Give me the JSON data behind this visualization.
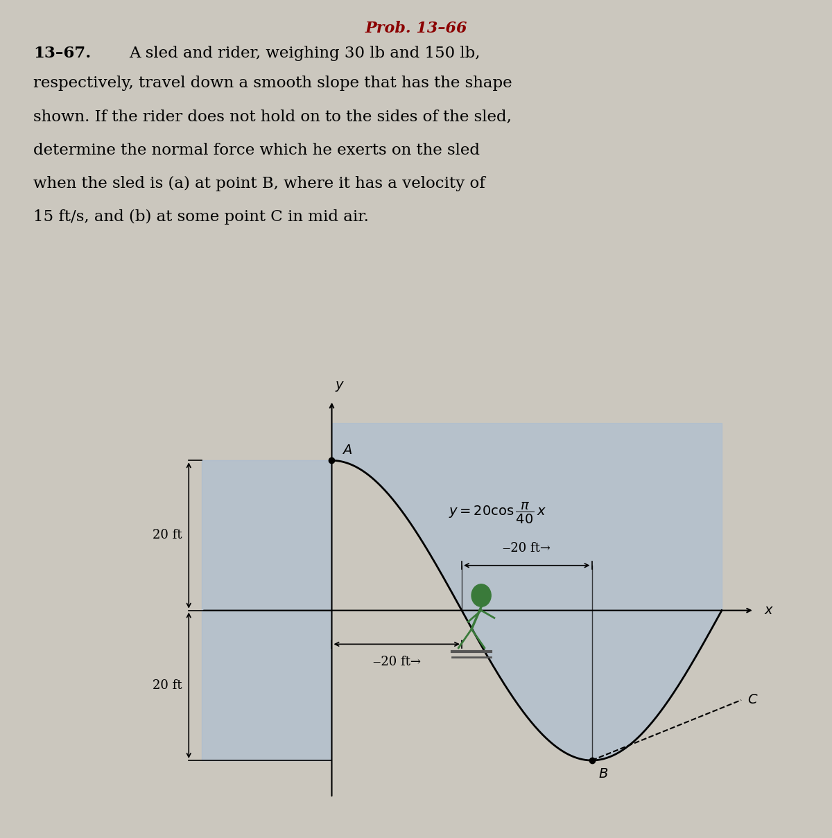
{
  "title": "Prob. 13–66",
  "title_color": "#8B0000",
  "problem_number": "13–67.",
  "problem_text_line1": "A sled and rider, weighing 30 lb and 150 lb,",
  "problem_text_line2": "respectively, travel down a smooth slope that has the shape",
  "problem_text_line3": "shown. If the rider does not hold on to the sides of the sled,",
  "problem_text_line4": "determine the normal force which he exerts on the sled",
  "problem_text_line5": "when the sled is (a) at point B, where it has a velocity of",
  "problem_text_line6": "15 ft/s, and (b) at some point C in mid air.",
  "bg_color": "#cbc7be",
  "curve_color": "#000000",
  "fill_color": "#a8bdd4",
  "fill_alpha": 0.6,
  "label_fontsize": 14,
  "title_fontsize": 16,
  "body_fontsize": 16.5
}
